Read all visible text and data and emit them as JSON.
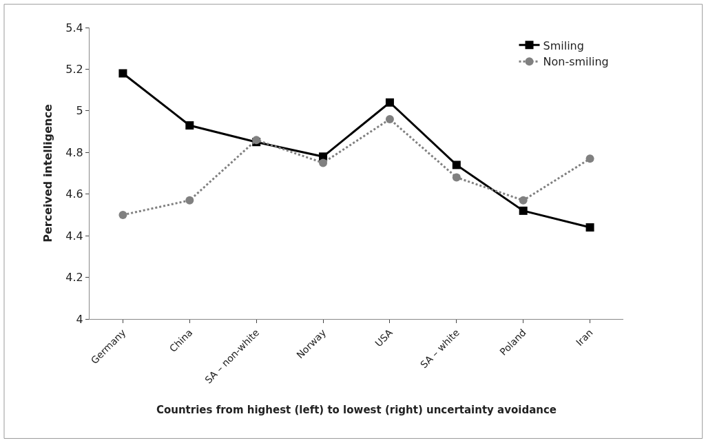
{
  "chart_data": {
    "type": "line",
    "xlabel": "Countries from highest (left) to lowest (right) uncertainty avoidance",
    "ylabel": "Perceived intelligence",
    "categories": [
      "Germany",
      "China",
      "SA – non-white",
      "Norway",
      "USA",
      "SA – white",
      "Poland",
      "Iran"
    ],
    "series": [
      {
        "name": "Smiling",
        "color": "#000000",
        "marker": "square",
        "line_style": "solid",
        "values": [
          5.18,
          4.93,
          4.85,
          4.78,
          5.04,
          4.74,
          4.52,
          4.44
        ]
      },
      {
        "name": "Non-smiling",
        "color": "#808080",
        "marker": "circle",
        "line_style": "dotted",
        "values": [
          4.5,
          4.57,
          4.86,
          4.75,
          4.96,
          4.68,
          4.57,
          4.77
        ]
      }
    ],
    "ylim": [
      4,
      5.4
    ],
    "yticks": [
      4,
      4.2,
      4.4,
      4.6,
      4.8,
      5,
      5.2,
      5.4
    ],
    "legend": "top right"
  }
}
